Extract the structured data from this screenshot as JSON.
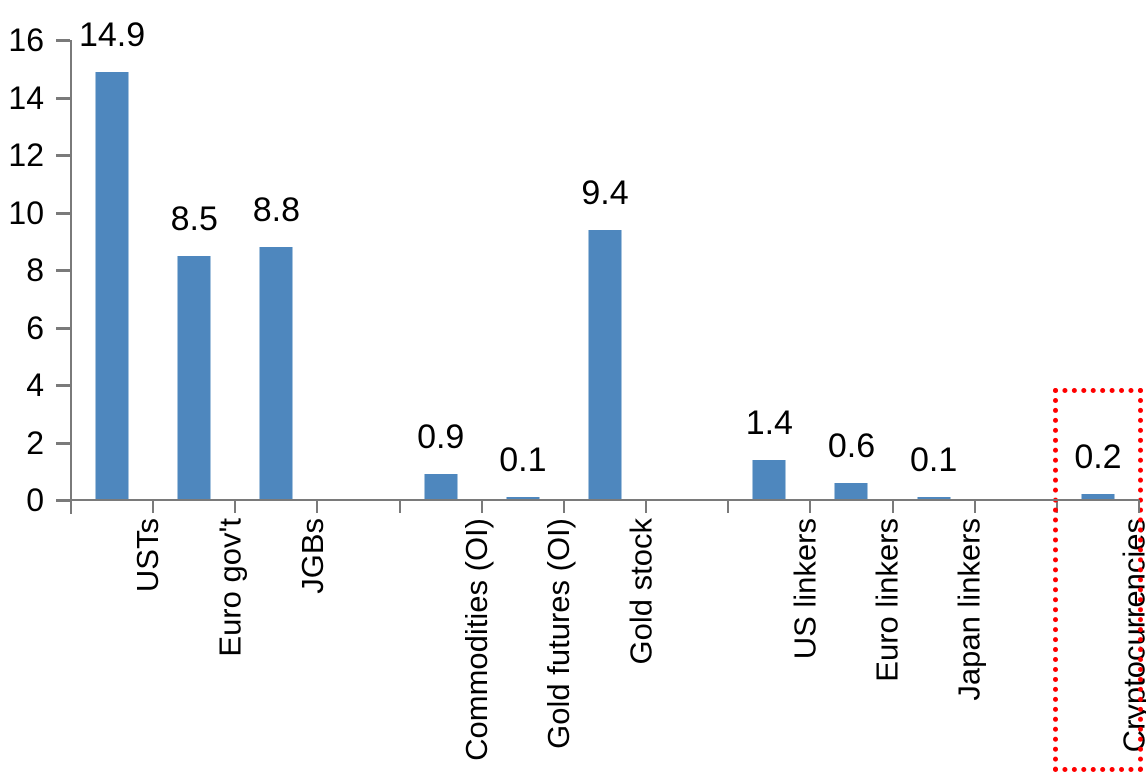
{
  "chart_data": {
    "type": "bar",
    "title": "",
    "xlabel": "",
    "ylabel": "",
    "categories": [
      "USTs",
      "Euro gov't",
      "JGBs",
      "Commodities (OI)",
      "Gold futures (OI)",
      "Gold stock",
      "US linkers",
      "Euro linkers",
      "Japan linkers",
      "Cryptocurrencies"
    ],
    "values": [
      14.9,
      8.5,
      8.8,
      0.9,
      0.1,
      9.4,
      1.4,
      0.6,
      0.1,
      0.2
    ],
    "data_labels": [
      "14.9",
      "8.5",
      "8.8",
      "0.9",
      "0.1",
      "9.4",
      "1.4",
      "0.6",
      "0.1",
      "0.2"
    ],
    "ylim": [
      0,
      16
    ],
    "yticks": [
      "0",
      "2",
      "4",
      "6",
      "8",
      "10",
      "12",
      "14",
      "16"
    ],
    "grid": false,
    "legend": "none",
    "category_label_rotation_deg": -90,
    "spacer_slots_after_indices": [
      2,
      5,
      8
    ],
    "bar_color": "#4E87BE",
    "axis_color": "#7A7A7A",
    "text_color": "#000000",
    "highlight": {
      "category": "Cryptocurrencies",
      "shape": "dotted-rectangle",
      "color": "#FF0000"
    }
  }
}
